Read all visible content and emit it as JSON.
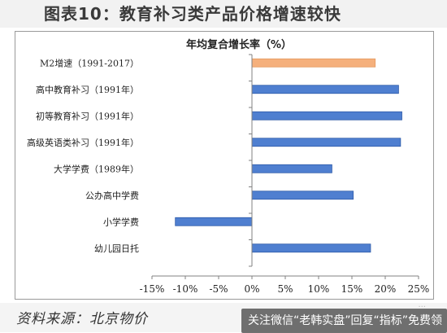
{
  "figure_title": "图表10：教育补习类产品价格增速较快",
  "source_text": "资料来源：北京物价",
  "overlay_text": "关注微信“老韩实盘”回复“指标”免费领",
  "watermark": "···",
  "colors": {
    "highlight": "#F5B07C",
    "bar": "#4F7FD0",
    "bar_edge": "#2E5AA8"
  },
  "chart_data": {
    "type": "bar",
    "orientation": "horizontal",
    "title": "年均复合增长率（%）",
    "categories": [
      "M2增速（1991-2017）",
      "高中教育补习（1991年）",
      "初等教育补习（1991年）",
      "高级英语类补习（1991年）",
      "大学学费（1989年）",
      "公办高中学费",
      "小学学费",
      "幼儿园日托"
    ],
    "values": [
      18.5,
      22,
      22.5,
      22.3,
      12,
      15.2,
      -11.5,
      17.8
    ],
    "highlight_index": 0,
    "xlim": [
      -15,
      25
    ],
    "xticks": [
      -15,
      -10,
      -5,
      0,
      5,
      10,
      15,
      20,
      25
    ],
    "tick_format": "percent",
    "grid": false,
    "legend": "none"
  }
}
